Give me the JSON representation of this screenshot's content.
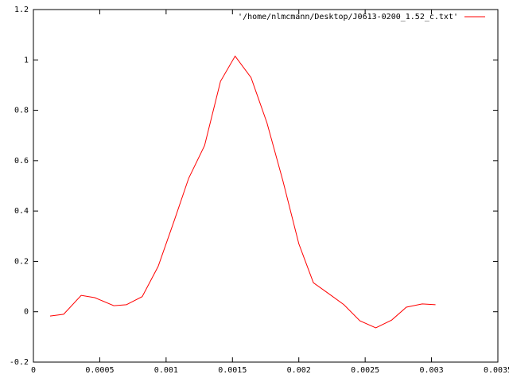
{
  "chart_data": {
    "type": "line",
    "x": [
      0.000126,
      0.000228,
      0.00036,
      0.000462,
      0.000606,
      0.000701,
      0.00082,
      0.00094,
      0.00106,
      0.00117,
      0.00129,
      0.00141,
      0.00152,
      0.00164,
      0.00176,
      0.00188,
      0.002,
      0.00211,
      0.00223,
      0.00234,
      0.00246,
      0.00258,
      0.0027,
      0.00281,
      0.00293,
      0.00303
    ],
    "series": [
      {
        "name": "'/home/nlmcmann/Desktop/J0613-0200_1.52_c.txt'",
        "color": "#ff0000",
        "values": [
          -0.017,
          -0.01,
          0.065,
          0.056,
          0.024,
          0.028,
          0.06,
          0.18,
          0.36,
          0.53,
          0.66,
          0.915,
          1.015,
          0.93,
          0.75,
          0.52,
          0.27,
          0.115,
          0.07,
          0.028,
          -0.036,
          -0.064,
          -0.033,
          0.018,
          0.031,
          0.028
        ]
      }
    ],
    "xlim": [
      0,
      0.0035
    ],
    "xticks": [
      0,
      0.0005,
      0.001,
      0.0015,
      0.002,
      0.0025,
      0.003,
      0.0035
    ],
    "ylim": [
      -0.2,
      1.2
    ],
    "yticks": [
      -0.2,
      0,
      0.2,
      0.4,
      0.6,
      0.8,
      1,
      1.2
    ],
    "legend": "top-right",
    "grid": false
  }
}
